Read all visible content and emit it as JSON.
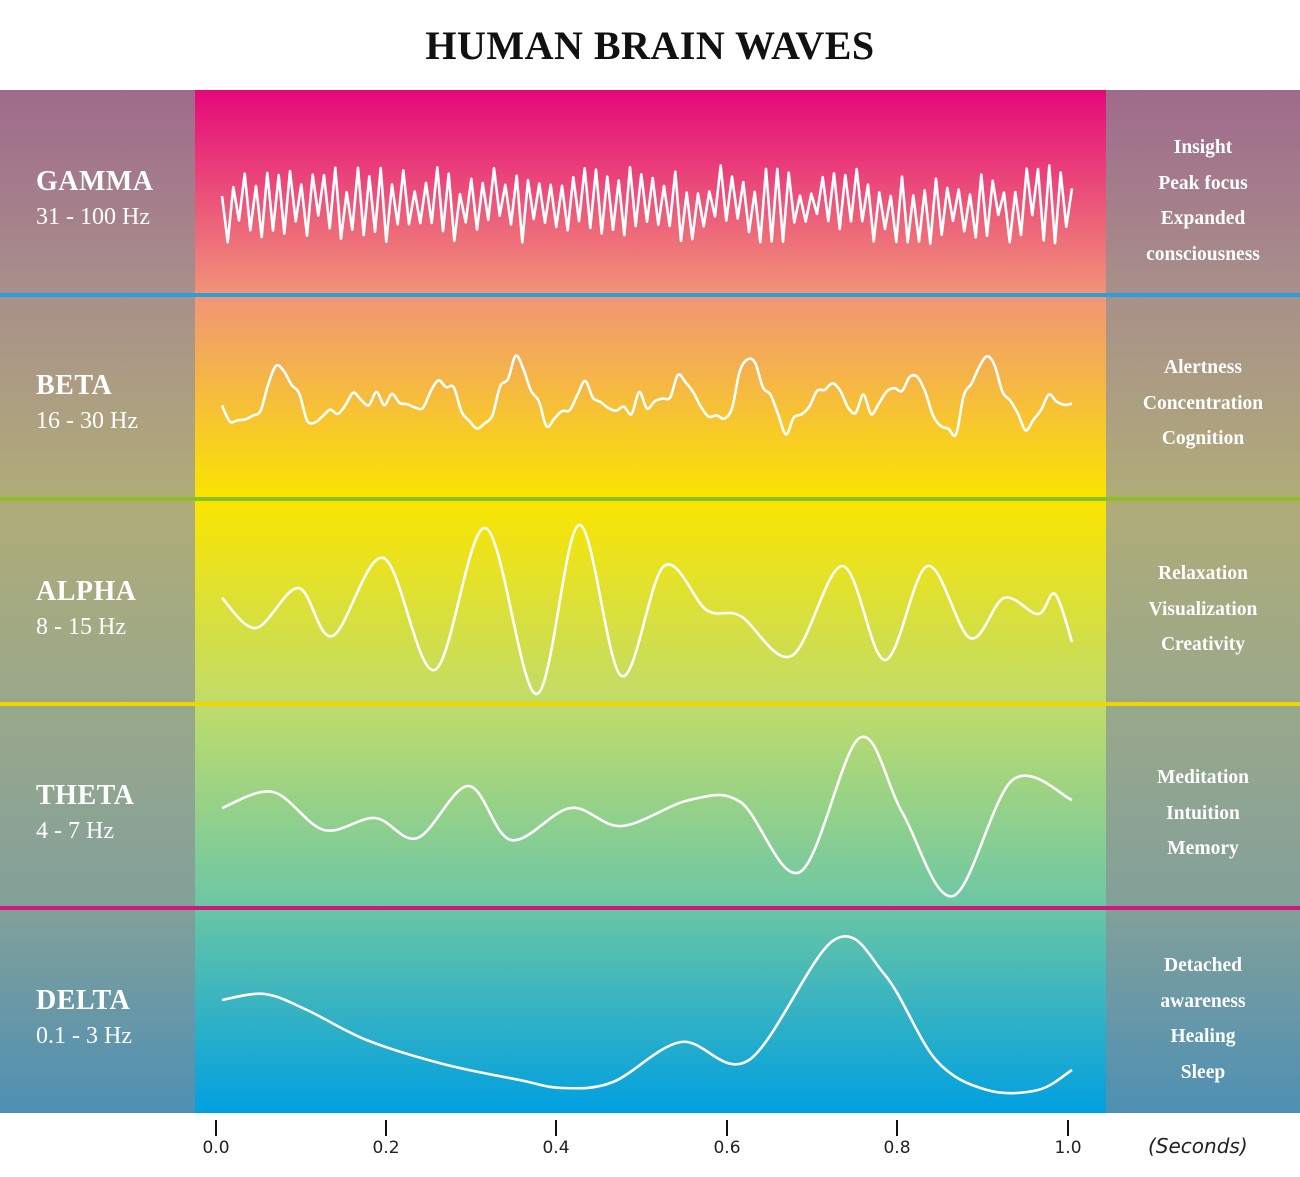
{
  "title": "HUMAN BRAIN WAVES",
  "bands": [
    {
      "name": "GAMMA",
      "freq": "31 - 100 Hz",
      "effects": [
        "Insight",
        "Peak focus",
        "Expanded",
        "consciousness"
      ],
      "divider_color": "#2a9fd8"
    },
    {
      "name": "BETA",
      "freq": "16 - 30 Hz",
      "effects": [
        "Alertness",
        "Concentration",
        "Cognition"
      ],
      "divider_color": "#8cbf26"
    },
    {
      "name": "ALPHA",
      "freq": "8 - 15 Hz",
      "effects": [
        "Relaxation",
        "Visualization",
        "Creativity"
      ],
      "divider_color": "#f0d600"
    },
    {
      "name": "THETA",
      "freq": "4 - 7 Hz",
      "effects": [
        "Meditation",
        "Intuition",
        "Memory"
      ],
      "divider_color": "#d0177a"
    },
    {
      "name": "DELTA",
      "freq": "0.1 - 3 Hz",
      "effects": [
        "Detached",
        "awareness",
        "Healing",
        "Sleep"
      ],
      "divider_color": ""
    }
  ],
  "axis": {
    "ticks": [
      "0.0",
      "0.2",
      "0.4",
      "0.6",
      "0.8",
      "1.0"
    ],
    "unit": "(Seconds)"
  },
  "colors": {
    "gradient": [
      "#e5087a",
      "#f39a7a",
      "#fbe500",
      "#74c7a0",
      "#00a0e0"
    ],
    "side_panel": [
      "#a06a8c",
      "#a8988a",
      "#b0ac78",
      "#98a890",
      "#4e90b0"
    ]
  }
}
